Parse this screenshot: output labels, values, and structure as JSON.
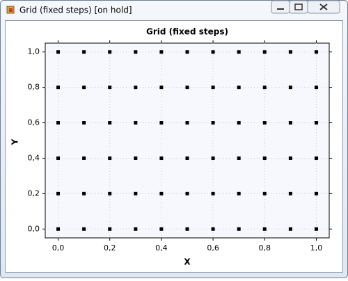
{
  "window": {
    "title": "Grid (fixed steps) [on hold]"
  },
  "chart_data": {
    "type": "scatter",
    "title": "Grid (fixed steps)",
    "x_label": "X",
    "y_label": "Y",
    "color": "#000000",
    "grid": true,
    "x": [
      0,
      0.1,
      0.2,
      0.3,
      0.4,
      0.5,
      0.6,
      0.7,
      0.8,
      0.9,
      1,
      0,
      0.1,
      0.2,
      0.3,
      0.4,
      0.5,
      0.6,
      0.7,
      0.8,
      0.9,
      1,
      0,
      0.1,
      0.2,
      0.3,
      0.4,
      0.5,
      0.6,
      0.7,
      0.8,
      0.9,
      1,
      0,
      0.1,
      0.2,
      0.3,
      0.4,
      0.5,
      0.6,
      0.7,
      0.8,
      0.9,
      1,
      0,
      0.1,
      0.2,
      0.3,
      0.4,
      0.5,
      0.6,
      0.7,
      0.8,
      0.9,
      1,
      0,
      0.1,
      0.2,
      0.3,
      0.4,
      0.5,
      0.6,
      0.7,
      0.8,
      0.9,
      1
    ],
    "values": [
      0,
      0,
      0,
      0,
      0,
      0,
      0,
      0,
      0,
      0,
      0,
      0.2,
      0.2,
      0.2,
      0.2,
      0.2,
      0.2,
      0.2,
      0.2,
      0.2,
      0.2,
      0.2,
      0.4,
      0.4,
      0.4,
      0.4,
      0.4,
      0.4,
      0.4,
      0.4,
      0.4,
      0.4,
      0.4,
      0.6,
      0.6,
      0.6,
      0.6,
      0.6,
      0.6,
      0.6,
      0.6,
      0.6,
      0.6,
      0.6,
      0.8,
      0.8,
      0.8,
      0.8,
      0.8,
      0.8,
      0.8,
      0.8,
      0.8,
      0.8,
      0.8,
      1,
      1,
      1,
      1,
      1,
      1,
      1,
      1,
      1,
      1,
      1
    ],
    "xlim": [
      -0.05,
      1.05
    ],
    "ylim": [
      -0.05,
      1.05
    ],
    "xticks": [
      {
        "value": 0,
        "label": "0,0"
      },
      {
        "value": 0.2,
        "label": "0,2"
      },
      {
        "value": 0.4,
        "label": "0,4"
      },
      {
        "value": 0.6,
        "label": "0,6"
      },
      {
        "value": 0.8,
        "label": "0,8"
      },
      {
        "value": 1,
        "label": "1,0"
      }
    ],
    "yticks": [
      {
        "value": 0,
        "label": "0,0"
      },
      {
        "value": 0.2,
        "label": "0,2"
      },
      {
        "value": 0.4,
        "label": "0,4"
      },
      {
        "value": 0.6,
        "label": "0,6"
      },
      {
        "value": 0.8,
        "label": "0,8"
      },
      {
        "value": 1,
        "label": "1,0"
      }
    ]
  }
}
